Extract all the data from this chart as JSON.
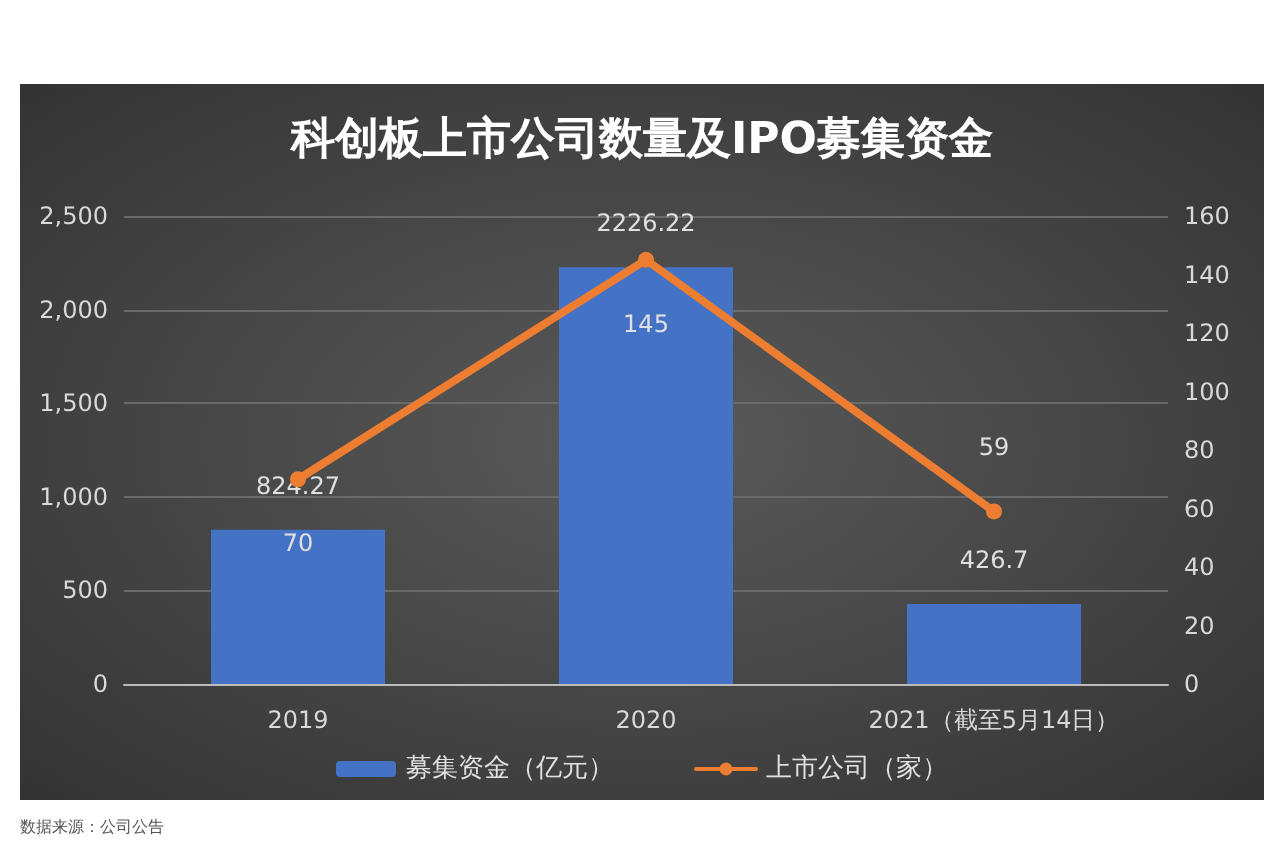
{
  "chart_data": {
    "type": "bar",
    "title": "科创板上市公司数量及IPO募集资金",
    "categories": [
      "2019",
      "2020",
      "2021（截至5月14日）"
    ],
    "series": [
      {
        "name": "募集资金（亿元）",
        "color": "#4472c4",
        "values": [
          824.27,
          2226.22,
          426.7
        ]
      },
      {
        "name": "上市公司（家）",
        "type": "line",
        "axis": "y2",
        "color": "#ed7d31",
        "values": [
          70,
          145,
          59
        ]
      }
    ],
    "ylim": [
      0,
      2500
    ],
    "yticks": [
      {
        "value": 0,
        "label": "0"
      },
      {
        "value": 500,
        "label": "500"
      },
      {
        "value": 1000,
        "label": "1,000"
      },
      {
        "value": 1500,
        "label": "1,500"
      },
      {
        "value": 2000,
        "label": "2,000"
      },
      {
        "value": 2500,
        "label": "2,500"
      }
    ],
    "y2lim": [
      0,
      160
    ],
    "y2ticks": [
      0,
      20,
      40,
      60,
      80,
      100,
      120,
      140,
      160
    ],
    "data_labels": true,
    "grid": "y",
    "legend": "bottom",
    "marker": "circle",
    "annotations": [
      "数据来源：公司公告"
    ]
  }
}
